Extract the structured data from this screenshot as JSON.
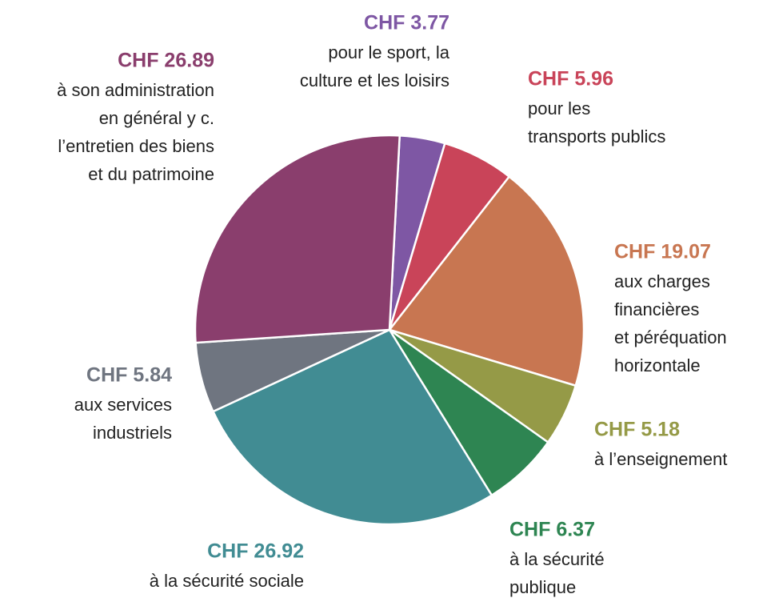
{
  "chart_data": {
    "type": "pie",
    "categories": [
      [
        "pour le sport, la",
        "culture et les loisirs"
      ],
      [
        "pour les",
        "transports publics"
      ],
      [
        "aux charges",
        "financières",
        "et péréquation",
        "horizontale"
      ],
      [
        "à l’enseignement"
      ],
      [
        "à la sécurité",
        "publique"
      ],
      [
        "à la sécurité sociale"
      ],
      [
        "aux services",
        "industriels"
      ],
      [
        "à son administration",
        "en général y c.",
        "l’entretien des biens",
        "et du patrimoine"
      ]
    ],
    "values": [
      3.77,
      5.96,
      19.07,
      5.18,
      6.37,
      26.92,
      5.84,
      26.89
    ],
    "value_labels": [
      "CHF 3.77",
      "CHF 5.96",
      "CHF 19.07",
      "CHF 5.18",
      "CHF 6.37",
      "CHF 26.92",
      "CHF 5.84",
      "CHF 26.89"
    ],
    "colors": [
      "#7e57a4",
      "#c94459",
      "#c87651",
      "#959a47",
      "#2e8552",
      "#418c93",
      "#6f7580",
      "#8a3e6d"
    ]
  }
}
